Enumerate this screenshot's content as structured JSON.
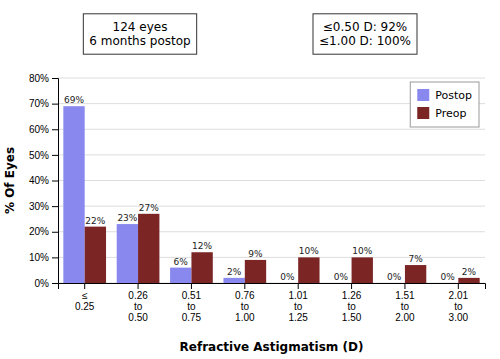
{
  "chart_data": {
    "type": "bar",
    "categories": [
      "≤\n0.25",
      "0.26\nto\n0.50",
      "0.51\nto\n0.75",
      "0.76\nto\n1.00",
      "1.01\nto\n1.25",
      "1.26\nto\n1.50",
      "1.51\nto\n2.00",
      "2.01\nto\n3.00"
    ],
    "series": [
      {
        "name": "Postop",
        "color": "#8888ee",
        "values": [
          69,
          23,
          6,
          2,
          0,
          0,
          0,
          0
        ],
        "value_labels": [
          "69%",
          "23%",
          "6%",
          "2%",
          "0%",
          "0%",
          "0%",
          "0%"
        ]
      },
      {
        "name": "Preop",
        "color": "#7b2525",
        "values": [
          22,
          27,
          12,
          9,
          10,
          10,
          7,
          2
        ],
        "value_labels": [
          "22%",
          "27%",
          "12%",
          "9%",
          "10%",
          "10%",
          "7%",
          "2%"
        ]
      }
    ],
    "xlabel": "Refractive Astigmatism (D)",
    "ylabel": "% Of Eyes",
    "ylim": [
      0,
      80
    ],
    "yticks": [
      {
        "value": 0,
        "label": "0%"
      },
      {
        "value": 10,
        "label": "10%"
      },
      {
        "value": 20,
        "label": "20%"
      },
      {
        "value": 30,
        "label": "30%"
      },
      {
        "value": 40,
        "label": "40%"
      },
      {
        "value": 50,
        "label": "50%"
      },
      {
        "value": 60,
        "label": "60%"
      },
      {
        "value": 70,
        "label": "70%"
      },
      {
        "value": 80,
        "label": "80%"
      }
    ],
    "annotations": [
      "124 eyes\n6 months postop",
      "≤0.50 D: 92%\n≤1.00 D: 100%"
    ],
    "grid": true,
    "legend": "upper right",
    "data_labels": true
  }
}
